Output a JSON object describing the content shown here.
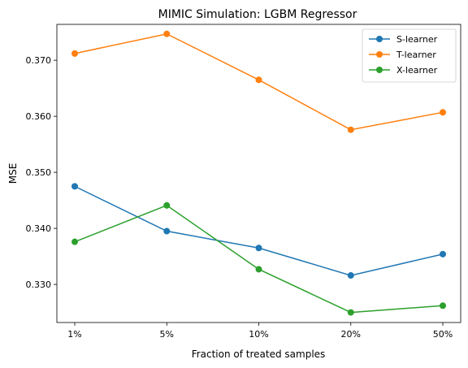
{
  "chart_data": {
    "type": "line",
    "title": "MIMIC Simulation: LGBM Regressor",
    "xlabel": "Fraction of treated samples",
    "ylabel": "MSE",
    "categories": [
      "1%",
      "5%",
      "10%",
      "20%",
      "50%"
    ],
    "ylim": [
      0.3232,
      0.3764
    ],
    "yticks": [
      "0.330",
      "0.340",
      "0.350",
      "0.360",
      "0.370"
    ],
    "ytick_values": [
      0.33,
      0.34,
      0.35,
      0.36,
      0.37
    ],
    "grid": false,
    "legend_position": "top-right",
    "series": [
      {
        "name": "S-learner",
        "color": "#1f77b4",
        "values": [
          0.3475,
          0.3395,
          0.3365,
          0.3316,
          0.3354
        ]
      },
      {
        "name": "T-learner",
        "color": "#ff7f0e",
        "values": [
          0.3712,
          0.3747,
          0.3665,
          0.3576,
          0.3607
        ]
      },
      {
        "name": "X-learner",
        "color": "#2ca02c",
        "values": [
          0.3376,
          0.3441,
          0.3327,
          0.325,
          0.3262
        ]
      }
    ]
  }
}
